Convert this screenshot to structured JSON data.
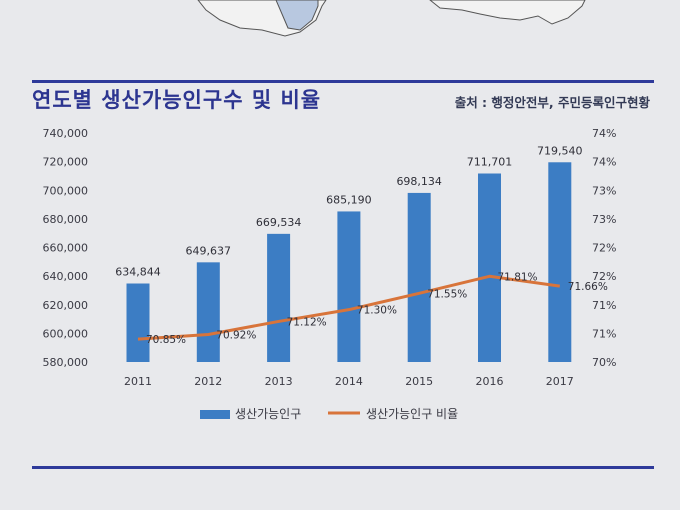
{
  "title": "연도별 생산가능인구수 및 비율",
  "source": "출처 : 행정안전부, 주민등록인구현황",
  "chart_data": {
    "type": "bar",
    "categories": [
      "2011",
      "2012",
      "2013",
      "2014",
      "2015",
      "2016",
      "2017"
    ],
    "series": [
      {
        "name": "생산가능인구",
        "type": "bar",
        "axis": "left",
        "values": [
          634844,
          649637,
          669534,
          685190,
          698134,
          711701,
          719540
        ],
        "labels": [
          "634,844",
          "649,637",
          "669,534",
          "685,190",
          "698,134",
          "711,701",
          "719,540"
        ],
        "color": "#3c7dc4"
      },
      {
        "name": "생산가능인구 비율",
        "type": "line",
        "axis": "right",
        "values": [
          70.85,
          70.92,
          71.12,
          71.3,
          71.55,
          71.81,
          71.66
        ],
        "labels": [
          "70.85%",
          "70.92%",
          "71.12%",
          "71.30%",
          "71.55%",
          "71.81%",
          "71.66%"
        ],
        "color": "#d8743a"
      }
    ],
    "ylim_left": [
      580000,
      740000
    ],
    "left_ticks": [
      "740,000",
      "720,000",
      "700,000",
      "680,000",
      "660,000",
      "640,000",
      "620,000",
      "600,000",
      "580,000"
    ],
    "ylim_right": [
      70.5,
      74
    ],
    "right_ticks": [
      "74%",
      "74%",
      "73%",
      "73%",
      "72%",
      "72%",
      "71%",
      "71%",
      "70%"
    ],
    "legend_position": "bottom",
    "grid": false
  }
}
